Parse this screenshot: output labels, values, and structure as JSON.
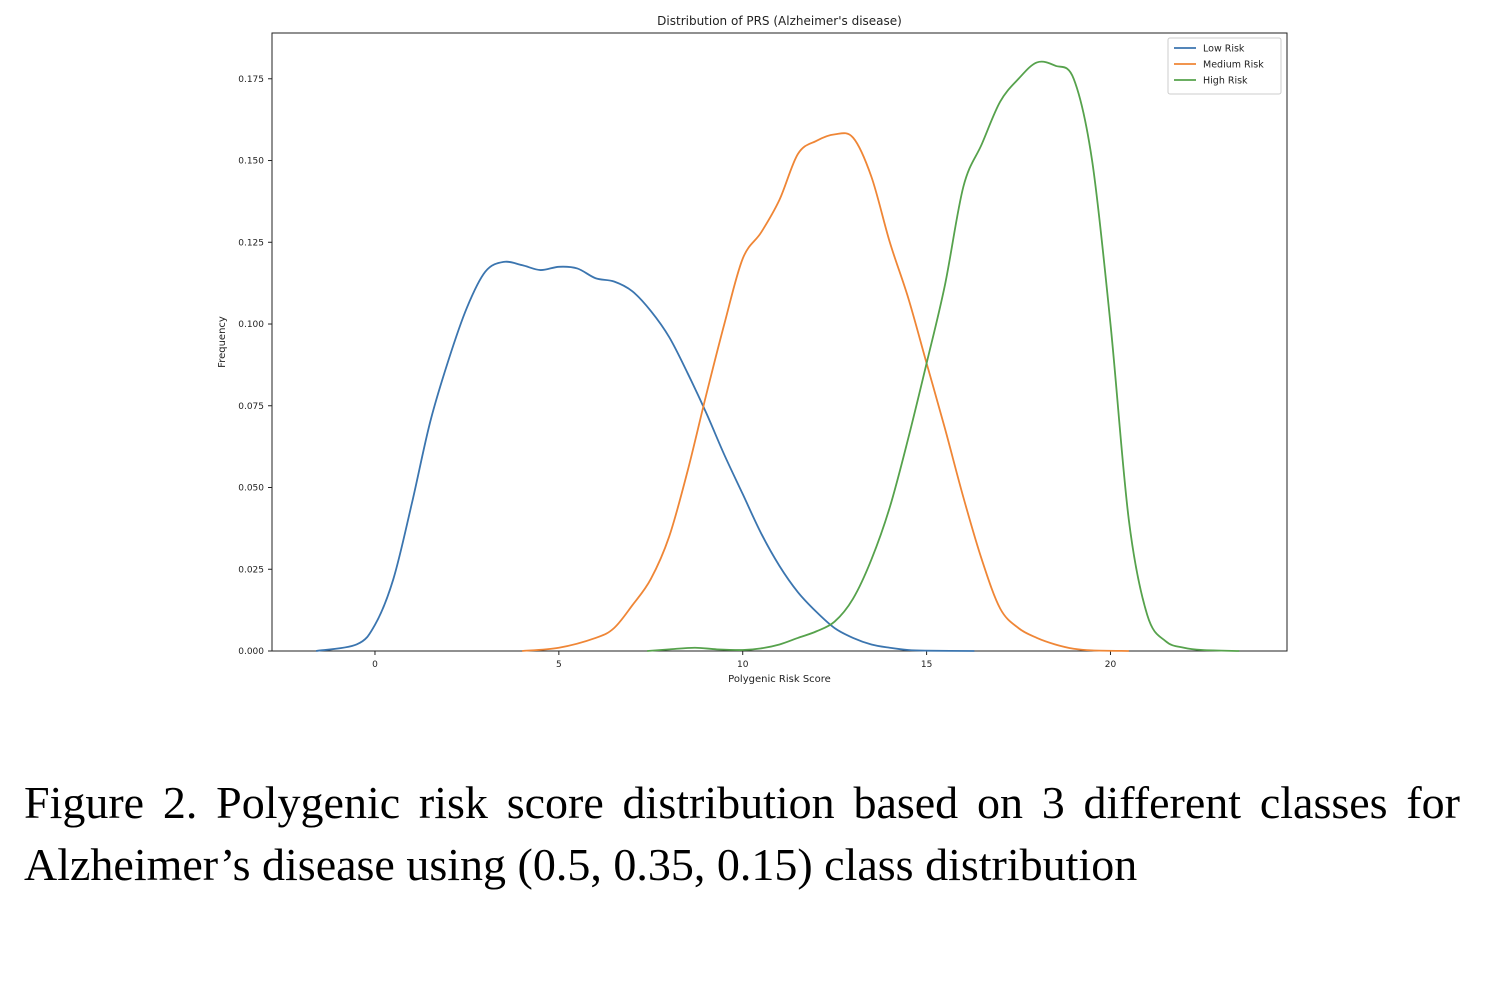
{
  "chart_data": {
    "type": "line",
    "title": "Distribution of PRS (Alzheimer's disease)",
    "xlabel": "Polygenic Risk Score",
    "ylabel": "Frequency",
    "xlim": [
      -2.8,
      24.8
    ],
    "ylim": [
      0,
      0.189
    ],
    "xticks": [
      0,
      5,
      10,
      15,
      20
    ],
    "yticks": [
      0.0,
      0.025,
      0.05,
      0.075,
      0.1,
      0.125,
      0.15,
      0.175
    ],
    "ytick_labels": [
      "0.000",
      "0.025",
      "0.050",
      "0.075",
      "0.100",
      "0.125",
      "0.150",
      "0.175"
    ],
    "grid": false,
    "legend_position": "top-right",
    "series": [
      {
        "name": "Low Risk",
        "color": "#3b75af",
        "x": [
          -1.6,
          -0.5,
          0,
          0.5,
          1,
          1.5,
          2,
          2.5,
          3,
          3.5,
          4,
          4.5,
          5,
          5.5,
          6,
          6.5,
          7,
          7.5,
          8,
          8.5,
          9,
          9.5,
          10,
          10.5,
          11,
          11.5,
          12,
          12.5,
          13,
          13.5,
          14,
          14.5,
          15,
          16.3
        ],
        "y": [
          0.0,
          0.002,
          0.008,
          0.022,
          0.045,
          0.07,
          0.089,
          0.105,
          0.116,
          0.119,
          0.118,
          0.1165,
          0.1175,
          0.117,
          0.114,
          0.113,
          0.11,
          0.104,
          0.096,
          0.085,
          0.073,
          0.06,
          0.048,
          0.036,
          0.026,
          0.018,
          0.012,
          0.007,
          0.004,
          0.002,
          0.001,
          0.0003,
          0.0001,
          0.0
        ]
      },
      {
        "name": "Medium Risk",
        "color": "#ef8636",
        "x": [
          4.0,
          5,
          6,
          6.5,
          7,
          7.5,
          8,
          8.5,
          9,
          9.5,
          10,
          10.5,
          11,
          11.5,
          12,
          12.5,
          13,
          13.5,
          14,
          14.5,
          15,
          15.5,
          16,
          16.5,
          17,
          17.5,
          18,
          18.5,
          19,
          19.5,
          20.5
        ],
        "y": [
          0.0,
          0.001,
          0.004,
          0.007,
          0.014,
          0.022,
          0.035,
          0.055,
          0.078,
          0.1,
          0.12,
          0.128,
          0.138,
          0.152,
          0.156,
          0.158,
          0.157,
          0.145,
          0.125,
          0.108,
          0.088,
          0.068,
          0.047,
          0.028,
          0.013,
          0.007,
          0.004,
          0.002,
          0.0007,
          0.0002,
          0.0
        ]
      },
      {
        "name": "High Risk",
        "color": "#56a24c",
        "x": [
          7.4,
          8.0,
          8.7,
          9.3,
          10,
          10.5,
          11,
          11.5,
          12,
          12.5,
          13,
          13.5,
          14,
          14.5,
          15,
          15.5,
          16,
          16.5,
          17,
          17.5,
          18,
          18.5,
          19,
          19.5,
          20,
          20.5,
          21,
          21.5,
          22,
          22.5,
          23.5
        ],
        "y": [
          0.0,
          0.0005,
          0.001,
          0.0005,
          0.0003,
          0.0008,
          0.002,
          0.004,
          0.006,
          0.009,
          0.016,
          0.028,
          0.044,
          0.065,
          0.088,
          0.112,
          0.142,
          0.155,
          0.168,
          0.175,
          0.18,
          0.179,
          0.175,
          0.15,
          0.1,
          0.04,
          0.011,
          0.003,
          0.001,
          0.0003,
          0.0
        ]
      }
    ]
  },
  "caption": "Figure 2. Polygenic risk score distribution based on 3 different classes for Alzheimer’s disease using (0.5, 0.35, 0.15) class distribution"
}
